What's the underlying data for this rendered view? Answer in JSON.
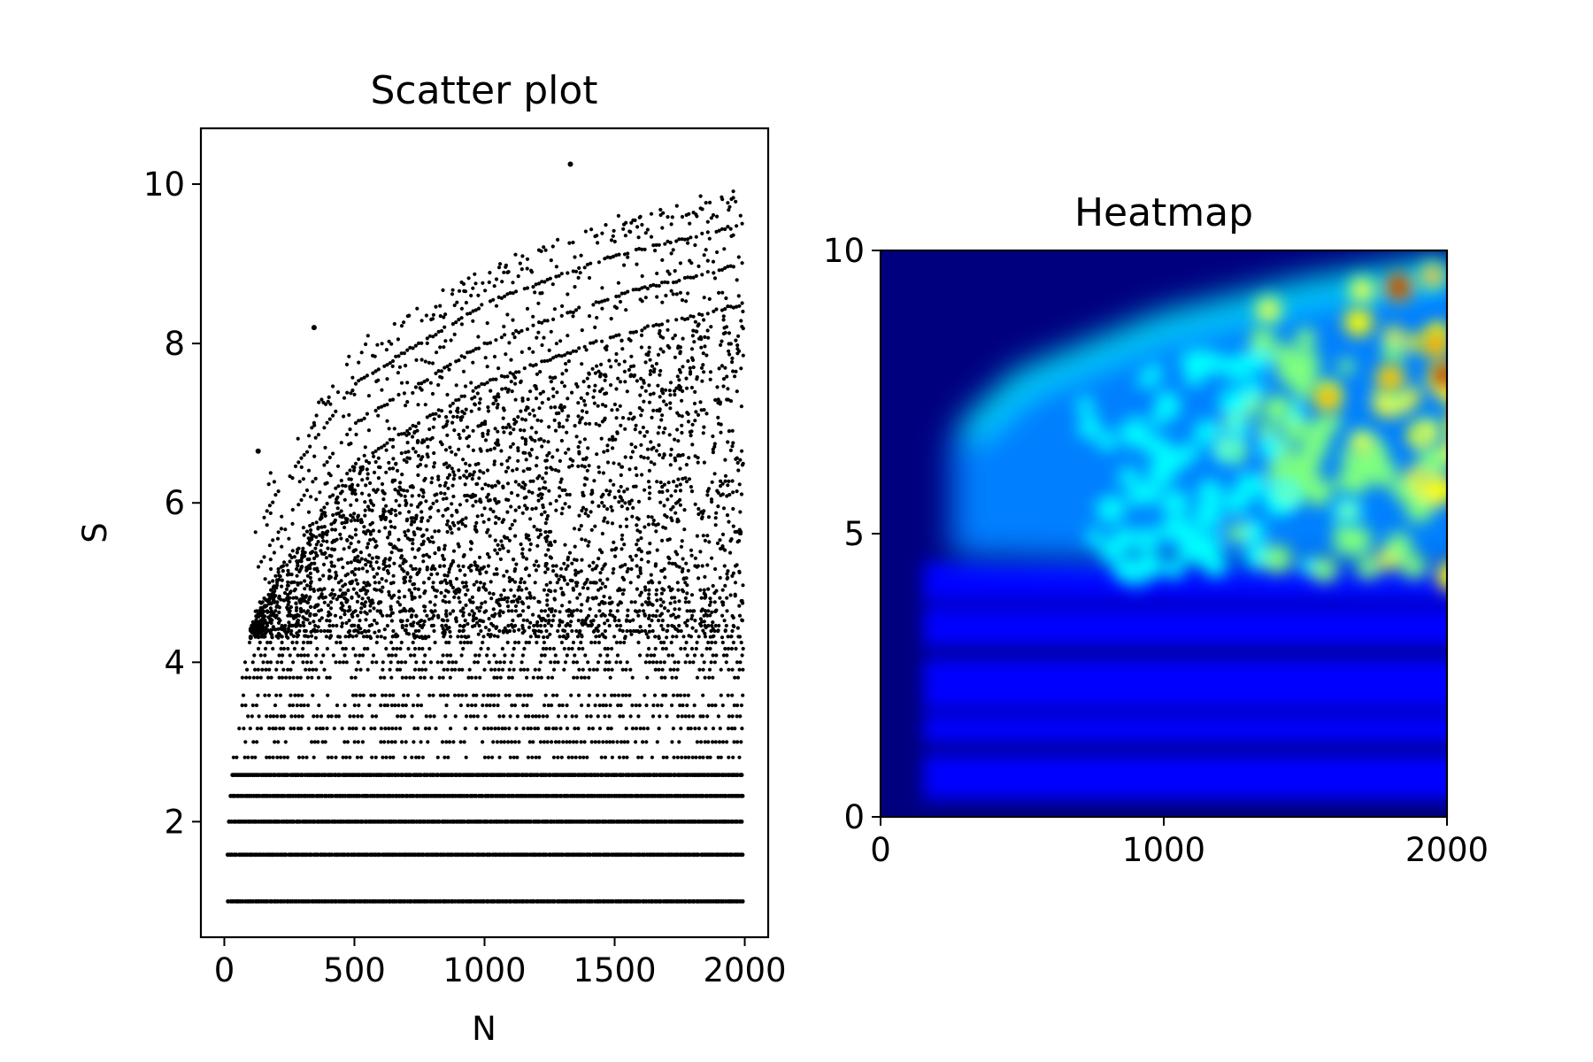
{
  "chart_data": [
    {
      "type": "scatter",
      "title": "Scatter plot",
      "xlabel": "N",
      "ylabel": "S",
      "xlim": [
        -90,
        2090
      ],
      "ylim": [
        0.55,
        10.7
      ],
      "xticks": [
        0,
        500,
        1000,
        1500,
        2000
      ],
      "yticks": [
        2,
        4,
        6,
        8,
        10
      ],
      "grid": false,
      "legend": "none",
      "marker_color": "#000000",
      "series": [
        {
          "point_summary": "dense dots for N = 1..2000; horizontal dotted bands at S = 1.0, 1.58, 2.0, 2.32, 2.58 and at discrete levels up to about 5.2; above that a fan of curved bands bounded by S ≈ log2(N) + 0.8, with the top arc near 1.585·ln(N)-style growth",
          "bands": [
            1.0,
            1.585,
            2.0,
            2.322,
            2.585,
            2.807,
            3.0,
            3.17,
            3.322,
            3.459,
            3.585,
            3.807,
            3.907,
            4.0,
            4.087,
            4.17,
            4.248,
            4.322,
            4.392,
            4.459,
            4.524,
            4.585,
            4.644,
            4.755,
            4.807,
            4.907,
            5.0,
            5.17,
            5.209
          ],
          "curves": [
            {
              "n": [
                200,
                500,
                1000,
                1500,
                2000
              ],
              "s": [
                6.1,
                7.5,
                8.5,
                9.1,
                9.5
              ]
            },
            {
              "n": [
                200,
                500,
                1000,
                1500,
                2000
              ],
              "s": [
                5.6,
                7.0,
                8.0,
                8.6,
                9.0
              ]
            },
            {
              "n": [
                200,
                500,
                1000,
                1500,
                2000
              ],
              "s": [
                5.1,
                6.5,
                7.5,
                8.1,
                8.5
              ]
            }
          ],
          "outliers": [
            {
              "x": 1330,
              "y": 10.25
            },
            {
              "x": 345,
              "y": 8.2
            },
            {
              "x": 130,
              "y": 6.65
            }
          ]
        }
      ]
    },
    {
      "type": "heatmap",
      "title": "Heatmap",
      "xlabel": "",
      "ylabel": "",
      "xlim": [
        0,
        2000
      ],
      "ylim": [
        0,
        10
      ],
      "xticks": [
        0,
        1000,
        2000
      ],
      "yticks": [
        0,
        5,
        10
      ],
      "colormap": "jet",
      "colormap_colors": [
        "#00007f",
        "#0000ff",
        "#007fff",
        "#00ffff",
        "#7fff7f",
        "#ffff00",
        "#ff7f00",
        "#ff0000",
        "#7f0000"
      ],
      "legend": "none",
      "density_summary": "low density (dark blue) in the upper-left; medium (blue) in horizontal bands at low S; high density (cyan-yellow) in a fan near the top-right, peaking (red) near N = 1850-2000, S = 7.8-9.4",
      "hotspots": [
        {
          "x": 1830,
          "y": 9.35,
          "level": 0.95
        },
        {
          "x": 1990,
          "y": 7.8,
          "level": 1.0
        },
        {
          "x": 1960,
          "y": 8.35,
          "level": 0.85
        },
        {
          "x": 1800,
          "y": 7.75,
          "level": 0.8
        },
        {
          "x": 1580,
          "y": 7.4,
          "level": 0.72
        },
        {
          "x": 1370,
          "y": 8.95,
          "level": 0.65
        },
        {
          "x": 1950,
          "y": 9.55,
          "level": 0.7
        },
        {
          "x": 1700,
          "y": 9.3,
          "level": 0.6
        },
        {
          "x": 1400,
          "y": 7.2,
          "level": 0.55
        },
        {
          "x": 1700,
          "y": 6.6,
          "level": 0.6
        },
        {
          "x": 1930,
          "y": 6.8,
          "level": 0.62
        },
        {
          "x": 1430,
          "y": 5.7,
          "level": 0.5
        },
        {
          "x": 1650,
          "y": 5.4,
          "level": 0.5
        },
        {
          "x": 1220,
          "y": 6.5,
          "level": 0.45
        }
      ]
    }
  ]
}
